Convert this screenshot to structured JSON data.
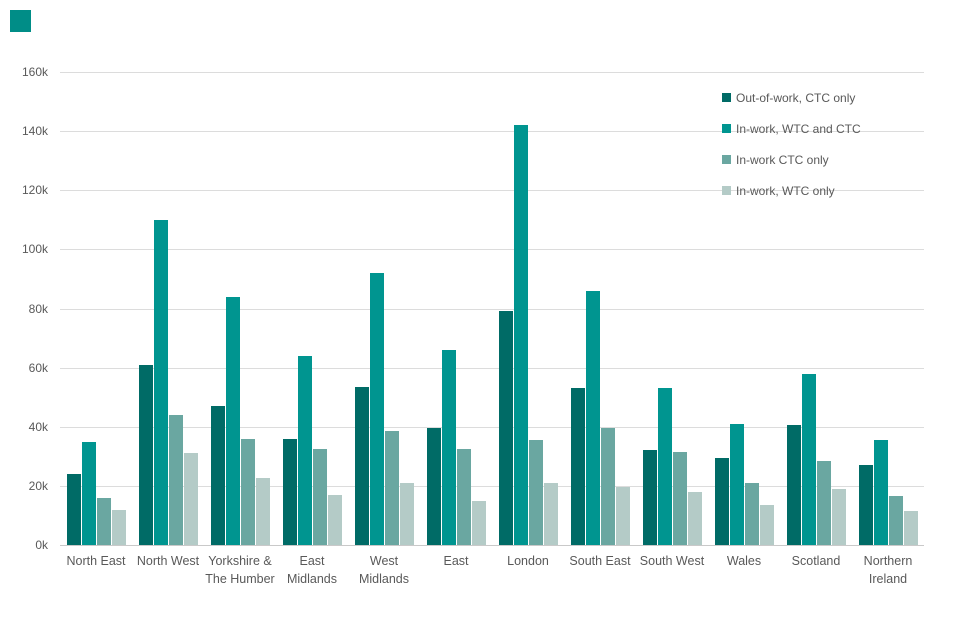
{
  "decor": {
    "corner_block_color": "#008d87"
  },
  "chart_data": {
    "type": "bar",
    "title": "",
    "xlabel": "",
    "ylabel": "",
    "values_unit": "thousands",
    "categories": [
      "North East",
      "North West",
      "Yorkshire & The Humber",
      "East Midlands",
      "West Midlands",
      "East",
      "London",
      "South East",
      "South West",
      "Wales",
      "Scotland",
      "Northern Ireland"
    ],
    "category_label_lines": [
      [
        "North East"
      ],
      [
        "North West"
      ],
      [
        "Yorkshire &",
        "The Humber"
      ],
      [
        "East",
        "Midlands"
      ],
      [
        "West",
        "Midlands"
      ],
      [
        "East"
      ],
      [
        "London"
      ],
      [
        "South East"
      ],
      [
        "South West"
      ],
      [
        "Wales"
      ],
      [
        "Scotland"
      ],
      [
        "Northern",
        "Ireland"
      ]
    ],
    "series": [
      {
        "name": "Out-of-work, CTC only",
        "color": "#006b66",
        "values": [
          24,
          61,
          47,
          36,
          53.5,
          39.5,
          79,
          53,
          32,
          29.5,
          40.5,
          27
        ]
      },
      {
        "name": "In-work, WTC and CTC",
        "color": "#009590",
        "values": [
          35,
          110,
          84,
          64,
          92,
          66,
          142,
          86,
          53,
          41,
          58,
          35.5
        ]
      },
      {
        "name": "In-work CTC only",
        "color": "#6aa7a1",
        "values": [
          16,
          44,
          36,
          32.5,
          38.5,
          32.5,
          35.5,
          39.5,
          31.5,
          21,
          28.5,
          16.5
        ]
      },
      {
        "name": "In-work, WTC only",
        "color": "#b4cbc7",
        "values": [
          12,
          31,
          22.5,
          17,
          21,
          15,
          21,
          19.5,
          18,
          13.5,
          19,
          11.5
        ]
      }
    ],
    "ylim": [
      0,
      160
    ],
    "yticks": [
      0,
      20,
      40,
      60,
      80,
      100,
      120,
      140,
      160
    ],
    "ytick_labels": [
      "0k",
      "20k",
      "40k",
      "60k",
      "80k",
      "100k",
      "120k",
      "140k",
      "160k"
    ],
    "grid": true,
    "legend_position": "top-right",
    "axis_text_color": "#595959",
    "gridline_color": "#dcdcdc",
    "baseline_color": "#c9c9c9"
  }
}
